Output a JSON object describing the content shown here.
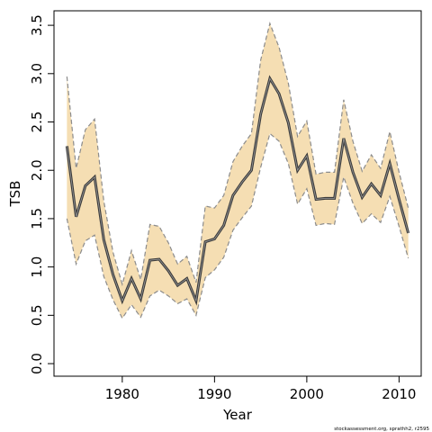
{
  "chart_data": {
    "type": "line",
    "title": "",
    "xlabel": "Year",
    "ylabel": "TSB",
    "xlim": [
      1972.6,
      2012.4
    ],
    "ylim": [
      -0.13,
      3.65
    ],
    "x_ticks": [
      1980,
      1990,
      2000,
      2010
    ],
    "x_tick_labels": [
      "1980",
      "1990",
      "2000",
      "2010"
    ],
    "y_ticks": [
      0.0,
      0.5,
      1.0,
      1.5,
      2.0,
      2.5,
      3.0,
      3.5
    ],
    "y_tick_labels": [
      "0.0",
      "0.5",
      "1.0",
      "1.5",
      "2.0",
      "2.5",
      "3.0",
      "3.5"
    ],
    "grid": false,
    "legend": "none",
    "series": [
      {
        "role": "estimate",
        "color": "#3c3c3c",
        "x": [
          1974,
          1975,
          1976,
          1977,
          1978,
          1979,
          1980,
          1981,
          1982,
          1983,
          1984,
          1985,
          1986,
          1987,
          1988,
          1989,
          1990,
          1991,
          1992,
          1993,
          1994,
          1995,
          1996,
          1997,
          1998,
          1999,
          2000,
          2001,
          2002,
          2003,
          2004,
          2005,
          2006,
          2007,
          2008,
          2009,
          2010,
          2011
        ],
        "y": [
          2.25,
          1.52,
          1.84,
          1.93,
          1.28,
          0.92,
          0.65,
          0.88,
          0.67,
          1.07,
          1.08,
          0.96,
          0.81,
          0.88,
          0.65,
          1.26,
          1.29,
          1.43,
          1.74,
          1.88,
          2.0,
          2.58,
          2.95,
          2.79,
          2.49,
          2.0,
          2.15,
          1.7,
          1.71,
          1.71,
          2.33,
          1.98,
          1.72,
          1.86,
          1.74,
          2.07,
          1.7,
          1.35
        ]
      },
      {
        "role": "upper",
        "color": "#8c8c8c",
        "x": [
          1974,
          1975,
          1976,
          1977,
          1978,
          1979,
          1980,
          1981,
          1982,
          1983,
          1984,
          1985,
          1986,
          1987,
          1988,
          1989,
          1990,
          1991,
          1992,
          1993,
          1994,
          1995,
          1996,
          1997,
          1998,
          1999,
          2000,
          2001,
          2002,
          2003,
          2004,
          2005,
          2006,
          2007,
          2008,
          2009,
          2010,
          2011
        ],
        "y": [
          2.97,
          2.02,
          2.42,
          2.53,
          1.68,
          1.15,
          0.82,
          1.17,
          0.87,
          1.44,
          1.42,
          1.25,
          1.03,
          1.11,
          0.84,
          1.63,
          1.61,
          1.74,
          2.09,
          2.25,
          2.38,
          3.14,
          3.52,
          3.27,
          2.9,
          2.35,
          2.51,
          1.96,
          1.98,
          1.98,
          2.73,
          2.3,
          1.99,
          2.16,
          2.02,
          2.4,
          1.98,
          1.61
        ]
      },
      {
        "role": "lower",
        "color": "#8c8c8c",
        "x": [
          1974,
          1975,
          1976,
          1977,
          1978,
          1979,
          1980,
          1981,
          1982,
          1983,
          1984,
          1985,
          1986,
          1987,
          1988,
          1989,
          1990,
          1991,
          1992,
          1993,
          1994,
          1995,
          1996,
          1997,
          1998,
          1999,
          2000,
          2001,
          2002,
          2003,
          2004,
          2005,
          2006,
          2007,
          2008,
          2009,
          2010,
          2011
        ],
        "y": [
          1.5,
          1.03,
          1.27,
          1.33,
          0.9,
          0.66,
          0.47,
          0.61,
          0.48,
          0.7,
          0.76,
          0.7,
          0.62,
          0.67,
          0.5,
          0.89,
          0.97,
          1.1,
          1.38,
          1.51,
          1.63,
          2.03,
          2.38,
          2.3,
          2.07,
          1.65,
          1.81,
          1.43,
          1.45,
          1.44,
          1.93,
          1.66,
          1.45,
          1.55,
          1.46,
          1.73,
          1.42,
          1.09
        ]
      }
    ],
    "band_fill": "#f5deb3",
    "footer_text": "stockassessment.org, sprathh2, r2595"
  }
}
